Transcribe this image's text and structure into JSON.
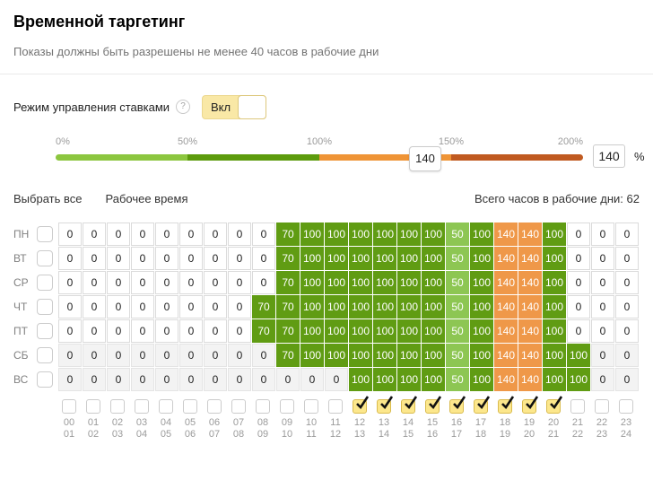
{
  "header": {
    "title": "Временной таргетинг",
    "subtitle": "Показы должны быть разрешены не менее 40 часов в рабочие дни"
  },
  "rate_mode": {
    "label": "Режим управления ставками",
    "help_icon": "question-circle-icon",
    "toggle_on_label": "Вкл",
    "toggle_state": "on"
  },
  "slider": {
    "scale_labels": [
      "0%",
      "50%",
      "100%",
      "150%",
      "200%"
    ],
    "marker_value": "140",
    "input_value": "140",
    "unit": "%",
    "segment_colors": [
      "#8cc63f",
      "#5d9b0d",
      "#ef9436",
      "#c05a20"
    ]
  },
  "actions": {
    "select_all": "Выбрать все",
    "working_time": "Рабочее время",
    "total_hours": "Всего часов в рабочие дни: 62"
  },
  "grid": {
    "value_colors": {
      "50": "#8dc653",
      "70": "#609c13",
      "100": "#609c13",
      "140": "#ef9849"
    },
    "days": [
      {
        "label": "ПН",
        "weekend": false,
        "checked": false,
        "values": [
          0,
          0,
          0,
          0,
          0,
          0,
          0,
          0,
          0,
          70,
          100,
          100,
          100,
          100,
          100,
          100,
          50,
          100,
          140,
          140,
          100,
          0,
          0,
          0
        ]
      },
      {
        "label": "ВТ",
        "weekend": false,
        "checked": false,
        "values": [
          0,
          0,
          0,
          0,
          0,
          0,
          0,
          0,
          0,
          70,
          100,
          100,
          100,
          100,
          100,
          100,
          50,
          100,
          140,
          140,
          100,
          0,
          0,
          0
        ]
      },
      {
        "label": "СР",
        "weekend": false,
        "checked": false,
        "values": [
          0,
          0,
          0,
          0,
          0,
          0,
          0,
          0,
          0,
          70,
          100,
          100,
          100,
          100,
          100,
          100,
          50,
          100,
          140,
          140,
          100,
          0,
          0,
          0
        ]
      },
      {
        "label": "ЧТ",
        "weekend": false,
        "checked": false,
        "values": [
          0,
          0,
          0,
          0,
          0,
          0,
          0,
          0,
          70,
          70,
          100,
          100,
          100,
          100,
          100,
          100,
          50,
          100,
          140,
          140,
          100,
          0,
          0,
          0
        ]
      },
      {
        "label": "ПТ",
        "weekend": false,
        "checked": false,
        "values": [
          0,
          0,
          0,
          0,
          0,
          0,
          0,
          0,
          70,
          70,
          100,
          100,
          100,
          100,
          100,
          100,
          50,
          100,
          140,
          140,
          100,
          0,
          0,
          0
        ]
      },
      {
        "label": "СБ",
        "weekend": true,
        "checked": false,
        "values": [
          0,
          0,
          0,
          0,
          0,
          0,
          0,
          0,
          0,
          70,
          100,
          100,
          100,
          100,
          100,
          100,
          50,
          100,
          140,
          140,
          100,
          100,
          0,
          0
        ]
      },
      {
        "label": "ВС",
        "weekend": true,
        "checked": false,
        "values": [
          0,
          0,
          0,
          0,
          0,
          0,
          0,
          0,
          0,
          0,
          0,
          0,
          100,
          100,
          100,
          100,
          50,
          100,
          140,
          140,
          100,
          100,
          0,
          0
        ]
      }
    ],
    "column_checks": [
      false,
      false,
      false,
      false,
      false,
      false,
      false,
      false,
      false,
      false,
      false,
      false,
      true,
      true,
      true,
      true,
      true,
      true,
      true,
      true,
      true,
      false,
      false,
      false
    ],
    "hour_labels": [
      [
        "00",
        "01"
      ],
      [
        "01",
        "02"
      ],
      [
        "02",
        "03"
      ],
      [
        "03",
        "04"
      ],
      [
        "04",
        "05"
      ],
      [
        "05",
        "06"
      ],
      [
        "06",
        "07"
      ],
      [
        "07",
        "08"
      ],
      [
        "08",
        "09"
      ],
      [
        "09",
        "10"
      ],
      [
        "10",
        "11"
      ],
      [
        "11",
        "12"
      ],
      [
        "12",
        "13"
      ],
      [
        "13",
        "14"
      ],
      [
        "14",
        "15"
      ],
      [
        "15",
        "16"
      ],
      [
        "16",
        "17"
      ],
      [
        "17",
        "18"
      ],
      [
        "18",
        "19"
      ],
      [
        "19",
        "20"
      ],
      [
        "20",
        "21"
      ],
      [
        "21",
        "22"
      ],
      [
        "22",
        "23"
      ],
      [
        "23",
        "24"
      ]
    ]
  }
}
